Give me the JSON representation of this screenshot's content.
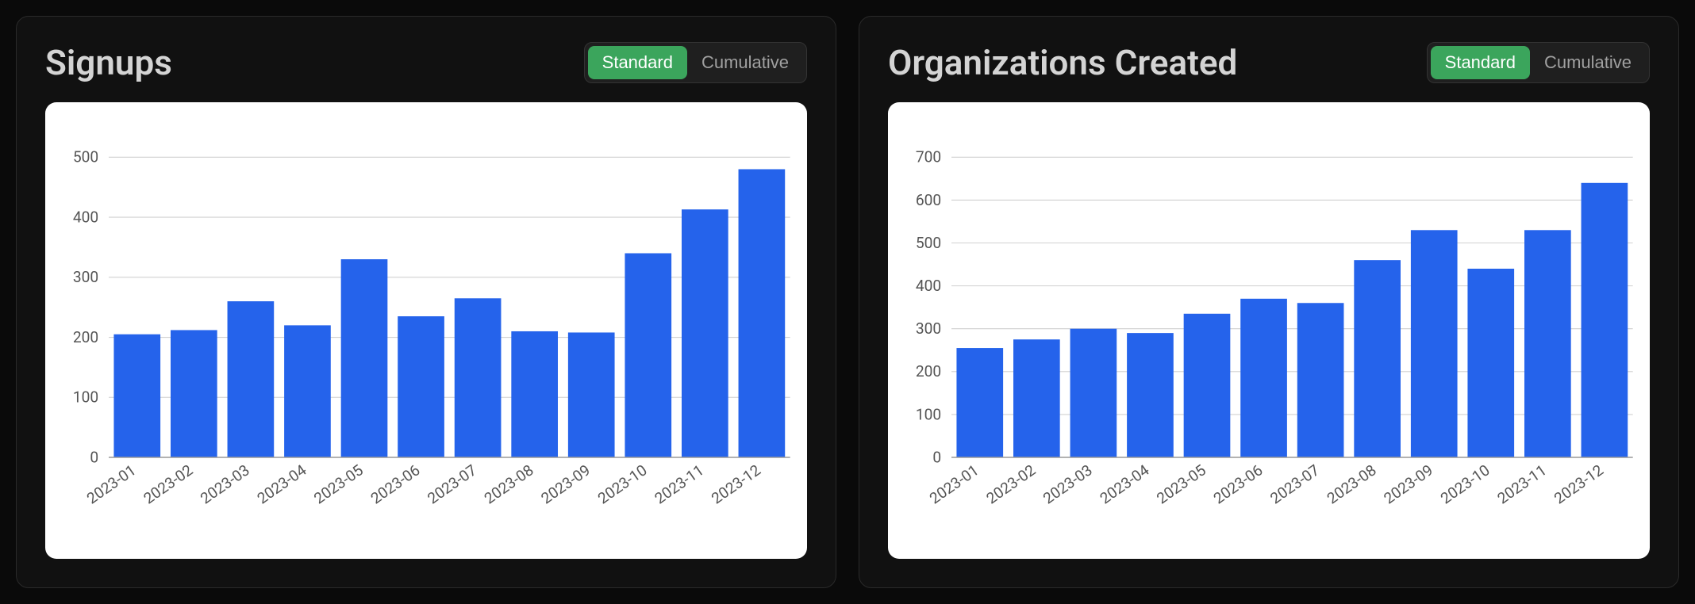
{
  "cards": [
    {
      "title": "Signups",
      "toggle": {
        "active": "Standard",
        "inactive": "Cumulative"
      },
      "chart": {
        "type": "bar",
        "categories": [
          "2023-01",
          "2023-02",
          "2023-03",
          "2023-04",
          "2023-05",
          "2023-06",
          "2023-07",
          "2023-08",
          "2023-09",
          "2023-10",
          "2023-11",
          "2023-12"
        ],
        "values": [
          205,
          212,
          260,
          220,
          330,
          235,
          265,
          210,
          208,
          340,
          413,
          480
        ],
        "ylim": [
          0,
          500
        ],
        "ytick_step": 100,
        "bar_color": "#2563eb",
        "background_color": "#ffffff",
        "grid_color": "#d0d0d0",
        "axis_color": "#999999",
        "label_color": "#555555",
        "label_fontsize": 18,
        "bar_width_ratio": 0.82
      }
    },
    {
      "title": "Organizations Created",
      "toggle": {
        "active": "Standard",
        "inactive": "Cumulative"
      },
      "chart": {
        "type": "bar",
        "categories": [
          "2023-01",
          "2023-02",
          "2023-03",
          "2023-04",
          "2023-05",
          "2023-06",
          "2023-07",
          "2023-08",
          "2023-09",
          "2023-10",
          "2023-11",
          "2023-12"
        ],
        "values": [
          255,
          275,
          300,
          290,
          335,
          370,
          360,
          460,
          530,
          440,
          530,
          640
        ],
        "ylim": [
          0,
          700
        ],
        "ytick_step": 100,
        "bar_color": "#2563eb",
        "background_color": "#ffffff",
        "grid_color": "#d0d0d0",
        "axis_color": "#999999",
        "label_color": "#555555",
        "label_fontsize": 18,
        "bar_width_ratio": 0.82
      }
    }
  ],
  "theme": {
    "page_background": "#0a0a0a",
    "card_background": "#111111",
    "card_border": "#2a2a2a",
    "title_color": "#d4d4d4",
    "toggle_background": "#1f1f1f",
    "toggle_border": "#333333",
    "toggle_active_bg": "#3ba55c",
    "toggle_active_color": "#ffffff",
    "toggle_inactive_color": "#a0a0a0"
  }
}
